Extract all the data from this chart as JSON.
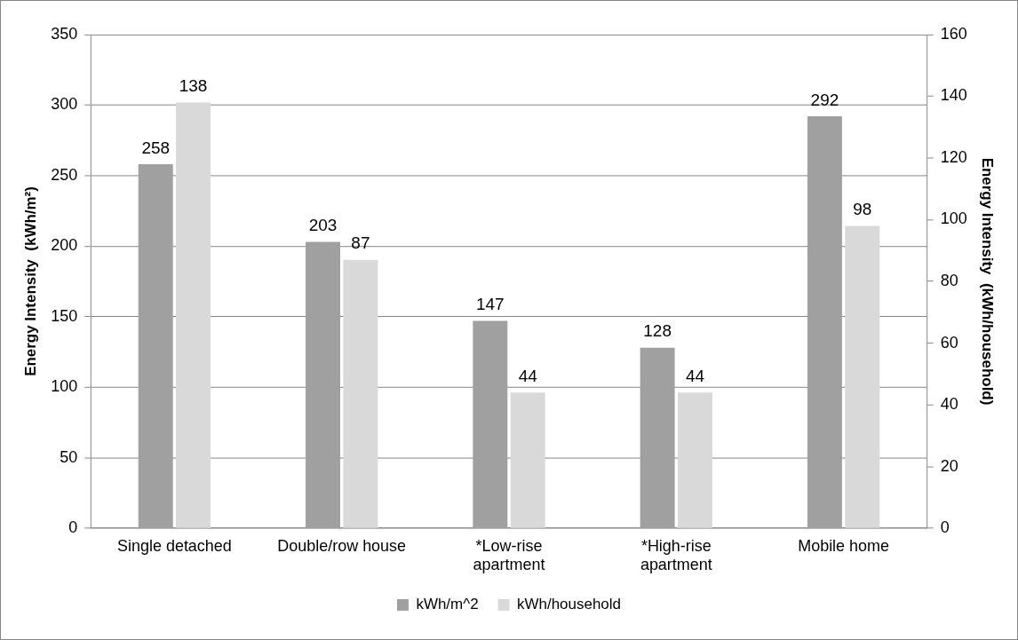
{
  "chart_data": {
    "type": "bar",
    "categories": [
      "Single detached",
      "Double/row house",
      "*Low-rise apartment",
      "*High-rise apartment",
      "Mobile home"
    ],
    "series": [
      {
        "name": "kWh/m^2",
        "color": "#a0a0a0",
        "values": [
          258,
          203,
          147,
          128,
          292
        ]
      },
      {
        "name": "kWh/household",
        "color": "#d9d9d9",
        "values": [
          138,
          87,
          44,
          44,
          98
        ],
        "axis": "y2"
      }
    ],
    "ylabel": "Energy Intensity  (kWh/m²)",
    "y2label": "Energy Intensity  (kWh/household)",
    "ylim": [
      0,
      350
    ],
    "yticks": [
      0,
      50,
      100,
      150,
      200,
      250,
      300,
      350
    ],
    "y2lim": [
      0,
      160
    ],
    "y2ticks": [
      0,
      20,
      40,
      60,
      80,
      100,
      120,
      140,
      160
    ],
    "grid": "y",
    "legend": "bottom",
    "data_labels": true
  }
}
